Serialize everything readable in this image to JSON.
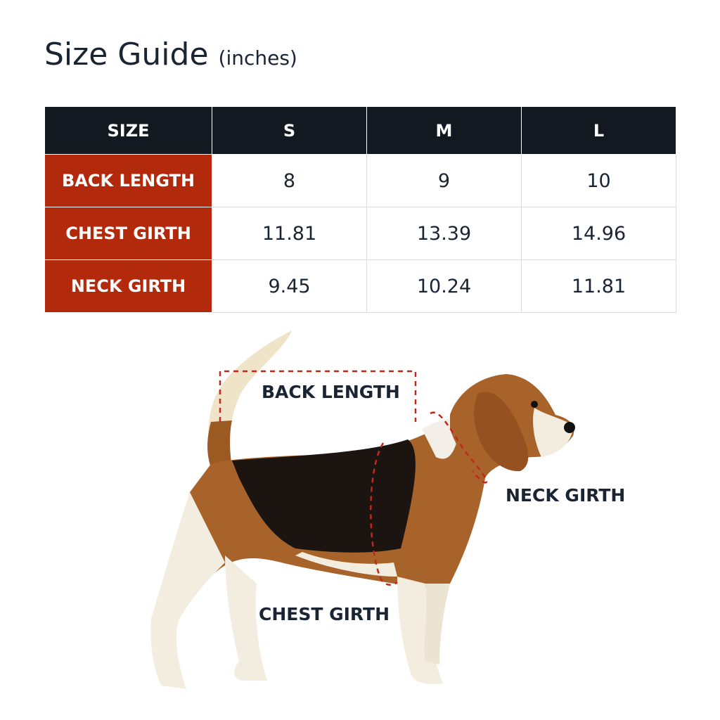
{
  "title": {
    "main": "Size Guide",
    "unit": "(inches)"
  },
  "table": {
    "headers": [
      "SIZE",
      "S",
      "M",
      "L"
    ],
    "rows": [
      {
        "label": "BACK LENGTH",
        "values": [
          "8",
          "9",
          "10"
        ]
      },
      {
        "label": "CHEST GIRTH",
        "values": [
          "11.81",
          "13.39",
          "14.96"
        ]
      },
      {
        "label": "NECK GIRTH",
        "values": [
          "9.45",
          "10.24",
          "11.81"
        ]
      }
    ]
  },
  "diagram": {
    "labels": {
      "back_length": "BACK LENGTH",
      "neck_girth": "NECK GIRTH",
      "chest_girth": "CHEST GIRTH"
    },
    "colors": {
      "measure_line": "#c0281b",
      "header": "#131921",
      "row_header": "#b2290b"
    }
  }
}
